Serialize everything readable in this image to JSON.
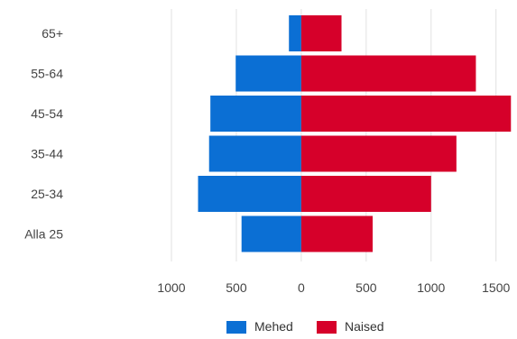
{
  "chart_data": {
    "type": "bar",
    "orientation": "horizontal",
    "layout": "diverging-population-pyramid",
    "categories": [
      "65+",
      "55-64",
      "45-54",
      "35-44",
      "25-34",
      "Alla 25"
    ],
    "series": [
      {
        "name": "Mehed",
        "color": "#0b6fd4",
        "values": [
          95,
          505,
          700,
          710,
          795,
          460
        ]
      },
      {
        "name": "Naised",
        "color": "#d6002a",
        "values": [
          310,
          1345,
          1615,
          1195,
          1000,
          550
        ]
      }
    ],
    "xticks": [
      {
        "value": -1000,
        "label": "1000"
      },
      {
        "value": -500,
        "label": "500"
      },
      {
        "value": 0,
        "label": "0"
      },
      {
        "value": 500,
        "label": "500"
      },
      {
        "value": 1000,
        "label": "1000"
      },
      {
        "value": 1500,
        "label": "1500"
      }
    ],
    "xlim": [
      -1000,
      1620
    ],
    "grid": true,
    "legend_position": "bottom-center",
    "title": "",
    "xlabel": "",
    "ylabel": ""
  }
}
